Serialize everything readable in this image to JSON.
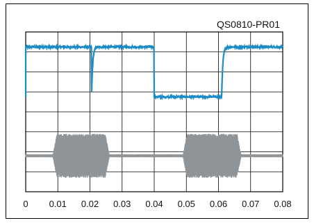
{
  "chart_data": {
    "type": "line",
    "annotation": "QS0810-PR01",
    "xlabel": "",
    "ylabel": "",
    "xlim": [
      0,
      0.08
    ],
    "x_ticks": [
      "0",
      "0.01",
      "0.02",
      "0.03",
      "0.04",
      "0.05",
      "0.06",
      "0.07",
      "0.08"
    ],
    "y_divisions": 8,
    "grid": true,
    "series": [
      {
        "kind": "square-wave",
        "color": "#1a8bc4",
        "low_level": 1.5,
        "high_level": 6.5,
        "rise_times": [
          0.0205,
          0.061
        ],
        "fall_times": [
          0.04
        ],
        "starts_high": true
      },
      {
        "kind": "burst",
        "color": "#8e9498",
        "center_level": -4.4,
        "burst_amplitude": 2.2,
        "idle_amplitude": 0.15,
        "bursts": [
          [
            0.0085,
            0.026
          ],
          [
            0.049,
            0.067
          ]
        ]
      }
    ],
    "ylim": [
      -8,
      8
    ]
  }
}
